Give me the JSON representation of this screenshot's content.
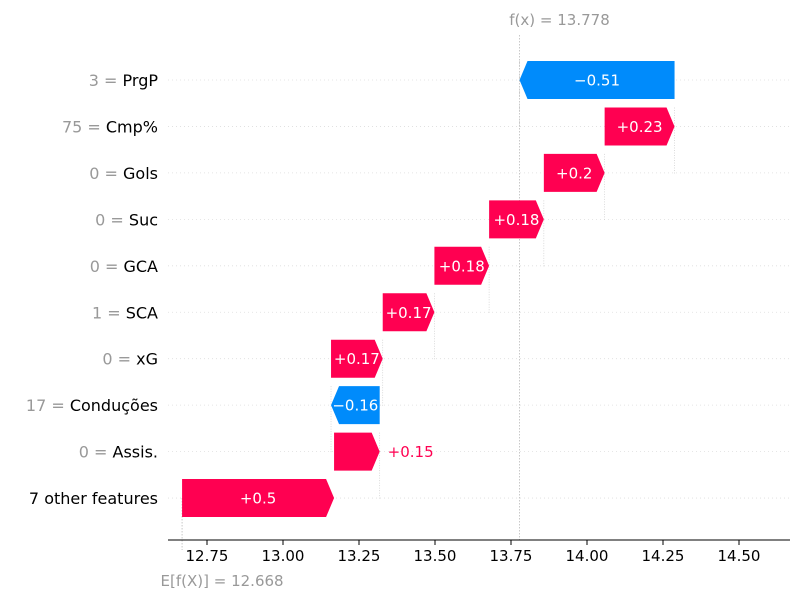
{
  "chart_data": {
    "type": "bar",
    "title": "",
    "xlabel": "",
    "ylabel": "",
    "xlim": [
      12.66,
      14.55
    ],
    "x_ticks": [
      "12.75",
      "13.00",
      "13.25",
      "13.50",
      "13.75",
      "14.00",
      "14.25",
      "14.50"
    ],
    "x_tick_values": [
      12.75,
      13.0,
      13.25,
      13.5,
      13.75,
      14.0,
      14.25,
      14.5
    ],
    "fx_label": "f(x) = 13.778",
    "fx_value": 13.778,
    "base_label": "E[f(X)] = 12.668",
    "base_value": 12.668,
    "colors": {
      "positive": "#ff0051",
      "negative": "#008bfb",
      "muted": "#999999"
    },
    "features": [
      {
        "value": "3",
        "name": "PrgP",
        "start": 14.288,
        "end": 13.778,
        "label": "−0.51",
        "sign": "neg"
      },
      {
        "value": "75",
        "name": "Cmp%",
        "start": 14.058,
        "end": 14.288,
        "label": "+0.23",
        "sign": "pos"
      },
      {
        "value": "0",
        "name": "Gols",
        "start": 13.858,
        "end": 14.058,
        "label": "+0.2",
        "sign": "pos"
      },
      {
        "value": "0",
        "name": "Suc",
        "start": 13.678,
        "end": 13.858,
        "label": "+0.18",
        "sign": "pos"
      },
      {
        "value": "0",
        "name": "GCA",
        "start": 13.498,
        "end": 13.678,
        "label": "+0.18",
        "sign": "pos"
      },
      {
        "value": "1",
        "name": "SCA",
        "start": 13.328,
        "end": 13.498,
        "label": "+0.17",
        "sign": "pos"
      },
      {
        "value": "0",
        "name": "xG",
        "start": 13.158,
        "end": 13.328,
        "label": "+0.17",
        "sign": "pos"
      },
      {
        "value": "17",
        "name": "Conduções",
        "start": 13.318,
        "end": 13.158,
        "label": "−0.16",
        "sign": "neg"
      },
      {
        "value": "0",
        "name": "Assis.",
        "start": 13.168,
        "end": 13.318,
        "label": "+0.15",
        "sign": "pos",
        "label_outside": true
      },
      {
        "value": "",
        "name": "7 other features",
        "start": 12.668,
        "end": 13.168,
        "label": "+0.5",
        "sign": "pos"
      }
    ]
  }
}
